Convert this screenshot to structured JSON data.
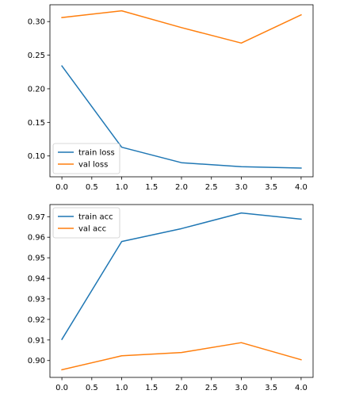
{
  "chart_data": [
    {
      "type": "line",
      "title": "",
      "xlabel": "",
      "ylabel": "",
      "x": [
        0,
        1,
        2,
        3,
        4
      ],
      "xlim": [
        -0.2,
        4.2
      ],
      "ylim": [
        0.069,
        0.325
      ],
      "xticks": [
        0.0,
        0.5,
        1.0,
        1.5,
        2.0,
        2.5,
        3.0,
        3.5,
        4.0
      ],
      "xtick_labels": [
        "0.0",
        "0.5",
        "1.0",
        "1.5",
        "2.0",
        "2.5",
        "3.0",
        "3.5",
        "4.0"
      ],
      "yticks": [
        0.1,
        0.15,
        0.2,
        0.25,
        0.3
      ],
      "ytick_labels": [
        "0.10",
        "0.15",
        "0.20",
        "0.25",
        "0.30"
      ],
      "grid": false,
      "legend_position": "lower-left",
      "series": [
        {
          "name": "train loss",
          "color": "#1f77b4",
          "values": [
            0.234,
            0.113,
            0.09,
            0.084,
            0.082
          ]
        },
        {
          "name": "val loss",
          "color": "#ff7f0e",
          "values": [
            0.306,
            0.316,
            0.291,
            0.268,
            0.31
          ]
        }
      ]
    },
    {
      "type": "line",
      "title": "",
      "xlabel": "",
      "ylabel": "",
      "x": [
        0,
        1,
        2,
        3,
        4
      ],
      "xlim": [
        -0.2,
        4.2
      ],
      "ylim": [
        0.8918,
        0.9759
      ],
      "xticks": [
        0.0,
        0.5,
        1.0,
        1.5,
        2.0,
        2.5,
        3.0,
        3.5,
        4.0
      ],
      "xtick_labels": [
        "0.0",
        "0.5",
        "1.0",
        "1.5",
        "2.0",
        "2.5",
        "3.0",
        "3.5",
        "4.0"
      ],
      "yticks": [
        0.9,
        0.91,
        0.92,
        0.93,
        0.94,
        0.95,
        0.96,
        0.97
      ],
      "ytick_labels": [
        "0.90",
        "0.91",
        "0.92",
        "0.93",
        "0.94",
        "0.95",
        "0.96",
        "0.97"
      ],
      "grid": false,
      "legend_position": "upper-left",
      "series": [
        {
          "name": "train acc",
          "color": "#1f77b4",
          "values": [
            0.9103,
            0.9579,
            0.9642,
            0.9718,
            0.9688
          ]
        },
        {
          "name": "val acc",
          "color": "#ff7f0e",
          "values": [
            0.8955,
            0.9023,
            0.9039,
            0.9087,
            0.9004
          ]
        }
      ]
    }
  ]
}
